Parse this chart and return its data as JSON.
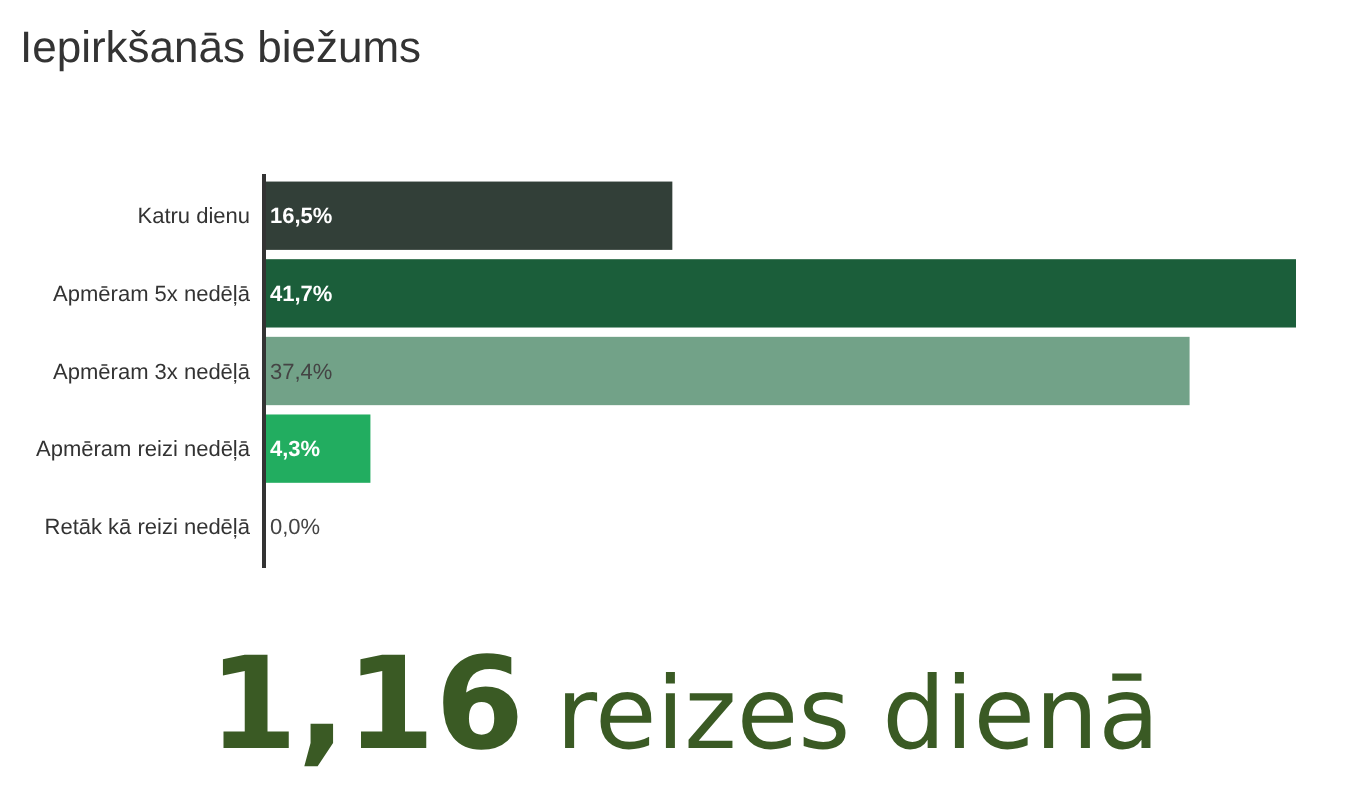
{
  "chart_data": {
    "type": "bar",
    "orientation": "horizontal",
    "title": "Iepirkšanās biežums",
    "categories": [
      "Katru dienu",
      "Apmēram 5x nedēļā",
      "Apmēram 3x nedēļā",
      "Apmēram reizi nedēļā",
      "Retāk kā reizi nedēļā"
    ],
    "values": [
      16.5,
      41.7,
      37.4,
      4.3,
      0.0
    ],
    "colors": [
      "#323f38",
      "#1b5e3a",
      "#72a288",
      "#22ad60",
      "#cccccc"
    ],
    "value_labels": [
      "16,5%",
      "41,7%",
      "37,4%",
      "4,3%",
      "0,0%"
    ],
    "annotations": [
      "1,16 reizes dienā"
    ]
  }
}
